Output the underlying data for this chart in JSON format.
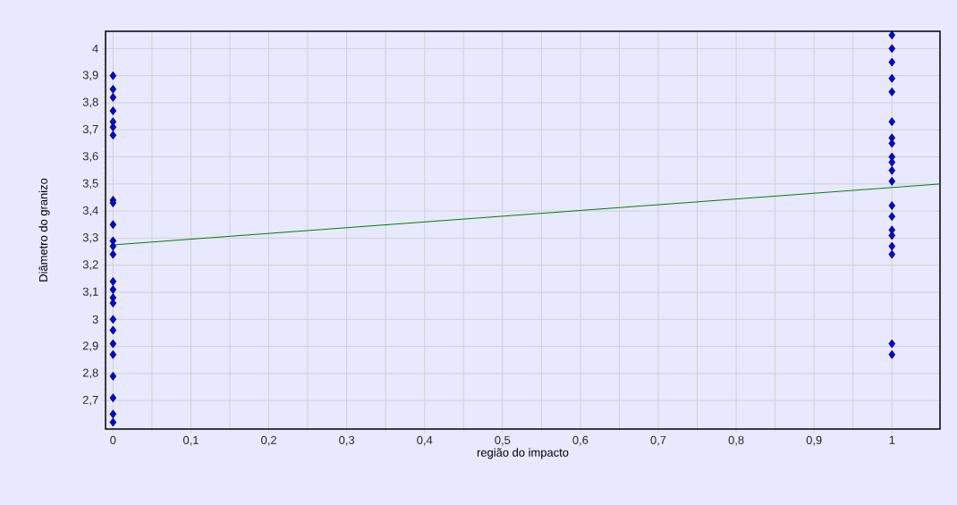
{
  "chart_data": {
    "type": "scatter",
    "xlabel": "região do impacto",
    "ylabel": "Diâmetro do granizo",
    "xlim": [
      -0.0096,
      1.0617
    ],
    "ylim": [
      2.595,
      4.064
    ],
    "xticks": [
      0,
      {
        "value": 0.1,
        "label": "0,1"
      },
      {
        "value": 0.2,
        "label": "0,2"
      },
      {
        "value": 0.3,
        "label": "0,3"
      },
      {
        "value": 0.4,
        "label": "0,4"
      },
      {
        "value": 0.5,
        "label": "0,5"
      },
      {
        "value": 0.6,
        "label": "0,6"
      },
      {
        "value": 0.7,
        "label": "0,7"
      },
      {
        "value": 0.8,
        "label": "0,8"
      },
      {
        "value": 0.9,
        "label": "0,9"
      },
      1
    ],
    "yticks": [
      {
        "value": 2.7,
        "label": "2,7"
      },
      {
        "value": 2.8,
        "label": "2,8"
      },
      {
        "value": 2.9,
        "label": "2,9"
      },
      3,
      {
        "value": 3.1,
        "label": "3,1"
      },
      {
        "value": 3.2,
        "label": "3,2"
      },
      {
        "value": 3.3,
        "label": "3,3"
      },
      {
        "value": 3.4,
        "label": "3,4"
      },
      {
        "value": 3.5,
        "label": "3,5"
      },
      {
        "value": 3.6,
        "label": "3,6"
      },
      {
        "value": 3.7,
        "label": "3,7"
      },
      {
        "value": 3.8,
        "label": "3,8"
      },
      {
        "value": 3.9,
        "label": "3,9"
      },
      4
    ],
    "grid": true,
    "marker": "diamond",
    "series": [
      {
        "color": "#0000ff",
        "x": [
          0,
          0,
          0,
          0,
          0,
          0,
          0,
          0,
          0,
          0,
          0,
          0,
          0,
          0,
          0,
          0,
          0,
          0,
          0,
          0,
          0,
          0,
          0,
          0,
          0,
          1,
          1,
          1,
          1,
          1,
          1,
          1,
          1,
          1,
          1,
          1,
          1,
          1,
          1,
          1,
          1,
          1,
          1,
          1,
          1
        ],
        "values": [
          3.9,
          3.85,
          3.82,
          3.77,
          3.73,
          3.71,
          3.68,
          3.44,
          3.43,
          3.35,
          3.29,
          3.27,
          3.24,
          3.14,
          3.11,
          3.08,
          3.06,
          3.0,
          2.96,
          2.91,
          2.87,
          2.79,
          2.71,
          2.65,
          2.62,
          4.05,
          4.0,
          3.95,
          3.89,
          3.84,
          3.73,
          3.67,
          3.65,
          3.6,
          3.58,
          3.55,
          3.51,
          3.42,
          3.38,
          3.33,
          3.31,
          3.27,
          3.24,
          2.91,
          2.87
        ]
      },
      {
        "type": "line",
        "color": "#008000",
        "marker": "none",
        "x": [
          0,
          1.0617
        ],
        "values": [
          3.275,
          3.5
        ]
      }
    ]
  }
}
